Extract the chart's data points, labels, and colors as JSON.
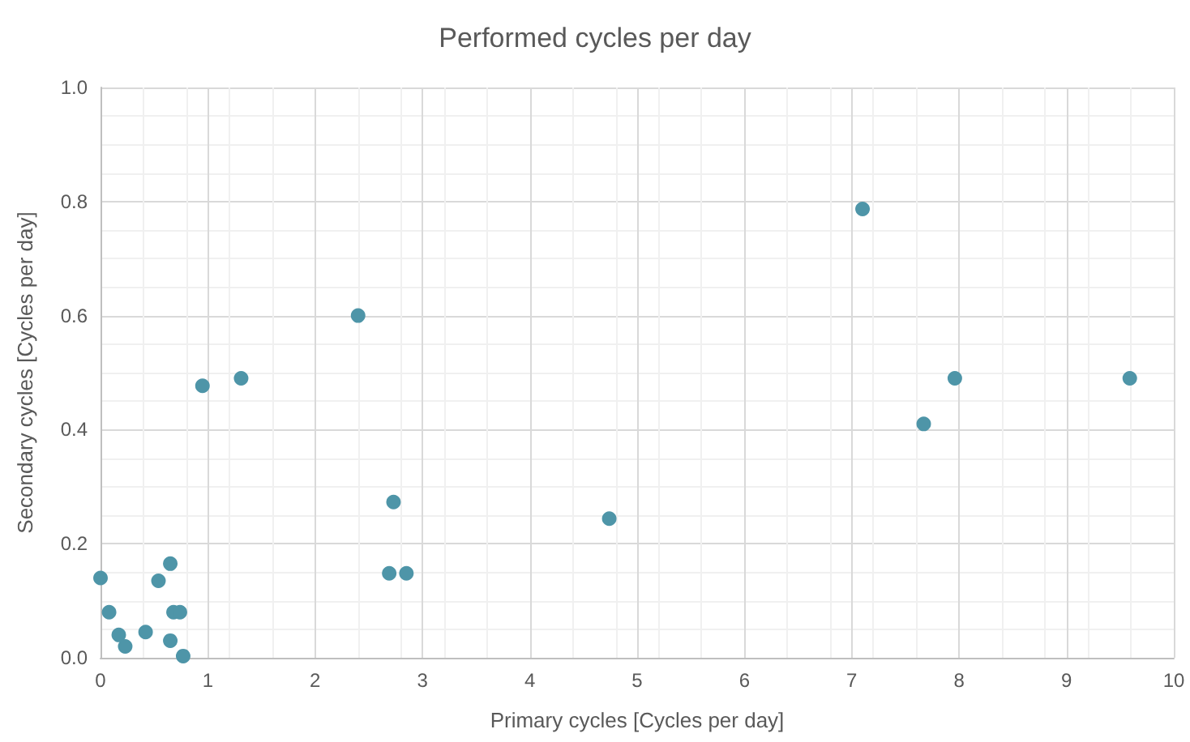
{
  "chart_data": {
    "type": "scatter",
    "title": "Performed cycles per day",
    "xlabel": "Primary cycles [Cycles per day]",
    "ylabel": "Secondary cycles [Cycles per day]",
    "x": [
      0,
      0.08,
      0.17,
      0.23,
      0.42,
      0.54,
      0.65,
      0.65,
      0.68,
      0.74,
      0.77,
      0.95,
      1.31,
      2.4,
      2.69,
      2.73,
      2.85,
      4.74,
      7.1,
      7.67,
      7.96,
      9.59
    ],
    "series": [
      {
        "color": "#4e95a8",
        "values": [
          0.14,
          0.08,
          0.04,
          0.02,
          0.045,
          0.135,
          0.165,
          0.03,
          0.08,
          0.08,
          0.003,
          0.477,
          0.49,
          0.6,
          0.148,
          0.273,
          0.148,
          0.244,
          0.787,
          0.41,
          0.49,
          0.49
        ]
      }
    ],
    "xlim": [
      0,
      10
    ],
    "xticks": [
      0,
      1,
      2,
      3,
      4,
      5,
      6,
      7,
      8,
      9,
      10
    ],
    "ylim": [
      0,
      1
    ],
    "yticks": [
      {
        "value": 0,
        "label": "0.0"
      },
      0.2,
      0.4,
      0.6,
      0.8,
      {
        "value": 1,
        "label": "1.0"
      }
    ],
    "grid": true,
    "marker": "circle"
  }
}
